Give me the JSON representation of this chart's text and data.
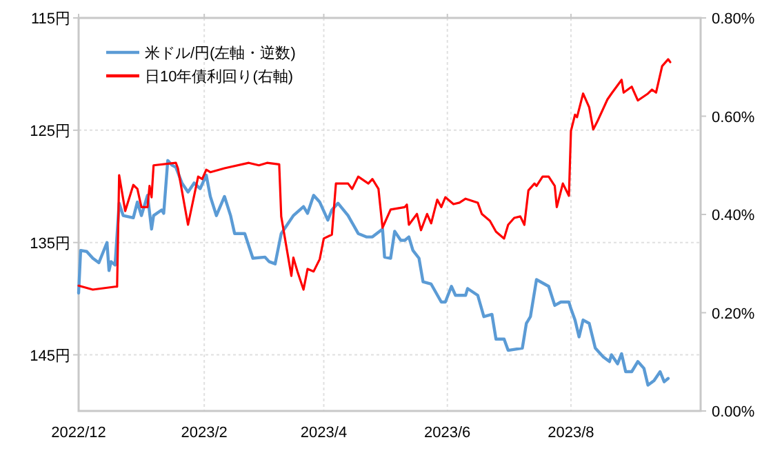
{
  "chart_data": {
    "type": "line",
    "xlim": [
      "2022-12-01",
      "2023-10-04"
    ],
    "xticks": [
      {
        "value": "2022-12-01",
        "label": "2022/12"
      },
      {
        "value": "2023-02-01",
        "label": "2023/2"
      },
      {
        "value": "2023-04-01",
        "label": "2023/4"
      },
      {
        "value": "2023-06-01",
        "label": "2023/6"
      },
      {
        "value": "2023-08-01",
        "label": "2023/8"
      }
    ],
    "ylim": [
      150,
      115
    ],
    "yticks": [
      {
        "value": 115,
        "label": "115円"
      },
      {
        "value": 125,
        "label": "125円"
      },
      {
        "value": 135,
        "label": "135円"
      },
      {
        "value": 145,
        "label": "145円"
      }
    ],
    "y2lim": [
      0,
      0.8
    ],
    "y2ticks": [
      {
        "value": 0,
        "label": "0.00%"
      },
      {
        "value": 0.2,
        "label": "0.20%"
      },
      {
        "value": 0.4,
        "label": "0.40%"
      },
      {
        "value": 0.6,
        "label": "0.60%"
      },
      {
        "value": 0.8,
        "label": "0.80%"
      }
    ],
    "grid": true,
    "legend": "top left",
    "series": [
      {
        "name": "米ドル/円(左軸・逆数)",
        "color": "#5b9bd5",
        "x": [
          "2022-12-01",
          "2022-12-02",
          "2022-12-05",
          "2022-12-08",
          "2022-12-11",
          "2022-12-15",
          "2022-12-16",
          "2022-12-17",
          "2022-12-19",
          "2022-12-21",
          "2022-12-23",
          "2022-12-28",
          "2022-12-30",
          "2023-01-01",
          "2023-01-04",
          "2023-01-06",
          "2023-01-07",
          "2023-01-11",
          "2023-01-12",
          "2023-01-14",
          "2023-01-16",
          "2023-01-18",
          "2023-01-21",
          "2023-01-24",
          "2023-01-27",
          "2023-01-30",
          "2023-02-02",
          "2023-02-04",
          "2023-02-07",
          "2023-02-11",
          "2023-02-14",
          "2023-02-16",
          "2023-02-21",
          "2023-02-25",
          "2023-03-03",
          "2023-03-05",
          "2023-03-08",
          "2023-03-11",
          "2023-03-14",
          "2023-03-17",
          "2023-03-22",
          "2023-03-24",
          "2023-03-27",
          "2023-03-30",
          "2023-04-03",
          "2023-04-05",
          "2023-04-08",
          "2023-04-13",
          "2023-04-18",
          "2023-04-22",
          "2023-04-25",
          "2023-04-30",
          "2023-05-01",
          "2023-05-04",
          "2023-05-06",
          "2023-05-09",
          "2023-05-11",
          "2023-05-13",
          "2023-05-15",
          "2023-05-18",
          "2023-05-20",
          "2023-05-24",
          "2023-05-29",
          "2023-05-31",
          "2023-06-03",
          "2023-06-05",
          "2023-06-10",
          "2023-06-11",
          "2023-06-16",
          "2023-06-19",
          "2023-06-23",
          "2023-06-25",
          "2023-06-29",
          "2023-07-01",
          "2023-07-08",
          "2023-07-10",
          "2023-07-12",
          "2023-07-15",
          "2023-07-21",
          "2023-07-24",
          "2023-07-27",
          "2023-07-31",
          "2023-08-01",
          "2023-08-03",
          "2023-08-05",
          "2023-08-07",
          "2023-08-10",
          "2023-08-13",
          "2023-08-17",
          "2023-08-20",
          "2023-08-21",
          "2023-08-24",
          "2023-08-26",
          "2023-08-28",
          "2023-08-31",
          "2023-09-03",
          "2023-09-06",
          "2023-09-08",
          "2023-09-11",
          "2023-09-14",
          "2023-09-16",
          "2023-09-18"
        ],
        "values": [
          139.5,
          135.7,
          135.8,
          136.4,
          136.8,
          135.0,
          137.5,
          136.7,
          137.0,
          131.5,
          132.6,
          132.8,
          131.4,
          132.6,
          130.8,
          133.8,
          132.6,
          132.1,
          132.4,
          127.7,
          128.1,
          128.3,
          129.7,
          130.5,
          129.7,
          130.2,
          129.0,
          130.9,
          132.6,
          130.9,
          132.6,
          134.2,
          134.2,
          136.4,
          136.3,
          136.7,
          136.9,
          134.2,
          133.4,
          132.6,
          131.8,
          132.4,
          130.8,
          131.4,
          133.0,
          132.1,
          131.5,
          132.6,
          134.2,
          134.5,
          134.5,
          133.8,
          136.3,
          136.4,
          134.0,
          134.8,
          134.8,
          134.5,
          135.7,
          136.4,
          138.5,
          138.7,
          140.3,
          140.3,
          138.9,
          139.7,
          139.7,
          139.1,
          139.7,
          141.6,
          141.4,
          143.6,
          143.6,
          144.6,
          144.4,
          142.2,
          141.6,
          138.3,
          138.9,
          140.6,
          140.3,
          140.3,
          140.9,
          141.9,
          143.4,
          141.9,
          142.2,
          144.4,
          145.2,
          145.6,
          145.0,
          145.8,
          144.9,
          146.5,
          146.5,
          145.6,
          146.2,
          147.7,
          147.3,
          146.5,
          147.4,
          147.1
        ]
      },
      {
        "name": "日10年債利回り(右軸)",
        "color": "#ff0000",
        "axis": "y2",
        "x": [
          "2022-12-01",
          "2022-12-08",
          "2022-12-19",
          "2022-12-20",
          "2022-12-21",
          "2022-12-24",
          "2022-12-28",
          "2022-12-30",
          "2023-01-01",
          "2023-01-04",
          "2023-01-05",
          "2023-01-06",
          "2023-01-07",
          "2023-01-18",
          "2023-01-19",
          "2023-01-24",
          "2023-01-29",
          "2023-01-31",
          "2023-02-02",
          "2023-02-04",
          "2023-02-11",
          "2023-02-23",
          "2023-02-28",
          "2023-03-04",
          "2023-03-10",
          "2023-03-11",
          "2023-03-16",
          "2023-03-17",
          "2023-03-19",
          "2023-03-22",
          "2023-03-24",
          "2023-03-27",
          "2023-03-30",
          "2023-04-01",
          "2023-04-05",
          "2023-04-07",
          "2023-04-13",
          "2023-04-15",
          "2023-04-18",
          "2023-04-23",
          "2023-04-25",
          "2023-04-28",
          "2023-04-30",
          "2023-05-04",
          "2023-05-11",
          "2023-05-12",
          "2023-05-13",
          "2023-05-17",
          "2023-05-19",
          "2023-05-22",
          "2023-05-24",
          "2023-05-27",
          "2023-05-29",
          "2023-05-31",
          "2023-06-04",
          "2023-06-07",
          "2023-06-10",
          "2023-06-16",
          "2023-06-18",
          "2023-06-22",
          "2023-06-25",
          "2023-06-29",
          "2023-07-01",
          "2023-07-04",
          "2023-07-07",
          "2023-07-09",
          "2023-07-11",
          "2023-07-14",
          "2023-07-15",
          "2023-07-18",
          "2023-07-21",
          "2023-07-24",
          "2023-07-25",
          "2023-07-28",
          "2023-07-31",
          "2023-08-01",
          "2023-08-03",
          "2023-08-04",
          "2023-08-07",
          "2023-08-10",
          "2023-08-12",
          "2023-08-14",
          "2023-08-19",
          "2023-08-21",
          "2023-08-26",
          "2023-08-27",
          "2023-08-31",
          "2023-09-03",
          "2023-09-08",
          "2023-09-10",
          "2023-09-12",
          "2023-09-15",
          "2023-09-18",
          "2023-09-19"
        ],
        "values": [
          0.255,
          0.247,
          0.253,
          0.253,
          0.48,
          0.407,
          0.46,
          0.452,
          0.415,
          0.415,
          0.458,
          0.435,
          0.5,
          0.505,
          0.494,
          0.379,
          0.477,
          0.472,
          0.491,
          0.486,
          0.494,
          0.505,
          0.5,
          0.505,
          0.502,
          0.396,
          0.275,
          0.312,
          0.284,
          0.247,
          0.289,
          0.284,
          0.309,
          0.351,
          0.359,
          0.463,
          0.463,
          0.452,
          0.477,
          0.463,
          0.472,
          0.452,
          0.373,
          0.41,
          0.415,
          0.42,
          0.379,
          0.401,
          0.368,
          0.401,
          0.382,
          0.43,
          0.415,
          0.435,
          0.421,
          0.424,
          0.432,
          0.424,
          0.401,
          0.387,
          0.365,
          0.351,
          0.379,
          0.393,
          0.396,
          0.379,
          0.449,
          0.463,
          0.458,
          0.477,
          0.477,
          0.458,
          0.415,
          0.463,
          0.438,
          0.57,
          0.603,
          0.598,
          0.646,
          0.618,
          0.573,
          0.589,
          0.634,
          0.646,
          0.674,
          0.648,
          0.66,
          0.632,
          0.646,
          0.654,
          0.648,
          0.702,
          0.716,
          0.71
        ]
      }
    ]
  }
}
